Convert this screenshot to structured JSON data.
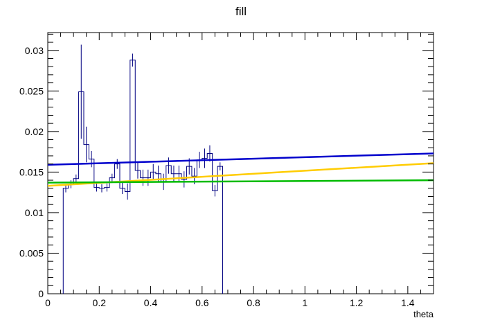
{
  "chart_data": {
    "type": "line",
    "title": "fill",
    "xlabel": "theta",
    "ylabel": "",
    "xlim": [
      0,
      1.5
    ],
    "ylim": [
      0,
      0.0322
    ],
    "grid": false,
    "x_tick_labels": [
      "0",
      "0.2",
      "0.4",
      "0.6",
      "0.8",
      "1",
      "1.2",
      "1.4"
    ],
    "x_tick_values": [
      0,
      0.2,
      0.4,
      0.6,
      0.8,
      1.0,
      1.2,
      1.4
    ],
    "y_tick_labels": [
      "0",
      "0.005",
      "0.01",
      "0.015",
      "0.02",
      "0.025",
      "0.03"
    ],
    "y_tick_values": [
      0,
      0.005,
      0.01,
      0.015,
      0.02,
      0.025,
      0.03
    ],
    "histogram": {
      "name": "fill",
      "color": "#000080",
      "bin_width": 0.02,
      "bins": [
        {
          "x0": 0.06,
          "value": 0.013,
          "error": 0.0005
        },
        {
          "x0": 0.08,
          "value": 0.0135,
          "error": 0.0005
        },
        {
          "x0": 0.1,
          "value": 0.0142,
          "error": 0.0005
        },
        {
          "x0": 0.12,
          "value": 0.0249,
          "error": 0.0058
        },
        {
          "x0": 0.14,
          "value": 0.0184,
          "error": 0.0022
        },
        {
          "x0": 0.16,
          "value": 0.0166,
          "error": 0.001
        },
        {
          "x0": 0.18,
          "value": 0.0131,
          "error": 0.0005
        },
        {
          "x0": 0.2,
          "value": 0.013,
          "error": 0.0005
        },
        {
          "x0": 0.22,
          "value": 0.0131,
          "error": 0.0005
        },
        {
          "x0": 0.24,
          "value": 0.0143,
          "error": 0.0005
        },
        {
          "x0": 0.26,
          "value": 0.016,
          "error": 0.0006
        },
        {
          "x0": 0.28,
          "value": 0.013,
          "error": 0.0007
        },
        {
          "x0": 0.3,
          "value": 0.0126,
          "error": 0.001
        },
        {
          "x0": 0.32,
          "value": 0.0288,
          "error": 0.0008
        },
        {
          "x0": 0.34,
          "value": 0.0152,
          "error": 0.001
        },
        {
          "x0": 0.36,
          "value": 0.0143,
          "error": 0.001
        },
        {
          "x0": 0.38,
          "value": 0.0143,
          "error": 0.001
        },
        {
          "x0": 0.4,
          "value": 0.015,
          "error": 0.001
        },
        {
          "x0": 0.42,
          "value": 0.0148,
          "error": 0.001
        },
        {
          "x0": 0.44,
          "value": 0.0138,
          "error": 0.001
        },
        {
          "x0": 0.46,
          "value": 0.0158,
          "error": 0.001
        },
        {
          "x0": 0.48,
          "value": 0.0148,
          "error": 0.001
        },
        {
          "x0": 0.5,
          "value": 0.0148,
          "error": 0.001
        },
        {
          "x0": 0.52,
          "value": 0.0141,
          "error": 0.001
        },
        {
          "x0": 0.54,
          "value": 0.0157,
          "error": 0.001
        },
        {
          "x0": 0.56,
          "value": 0.0145,
          "error": 0.001
        },
        {
          "x0": 0.58,
          "value": 0.0165,
          "error": 0.001
        },
        {
          "x0": 0.6,
          "value": 0.0167,
          "error": 0.0012
        },
        {
          "x0": 0.62,
          "value": 0.0173,
          "error": 0.001
        },
        {
          "x0": 0.64,
          "value": 0.0127,
          "error": 0.0007
        },
        {
          "x0": 0.66,
          "value": 0.0157,
          "error": 0.0005
        }
      ]
    },
    "series": [
      {
        "color": "#0000cc",
        "x": [
          0,
          1.5
        ],
        "values": [
          0.0159,
          0.0173
        ]
      },
      {
        "color": "#ffcc00",
        "x": [
          0,
          1.5
        ],
        "values": [
          0.0133,
          0.0161
        ]
      },
      {
        "color": "#00bb00",
        "x": [
          0,
          1.5
        ],
        "values": [
          0.0137,
          0.014
        ]
      }
    ]
  }
}
